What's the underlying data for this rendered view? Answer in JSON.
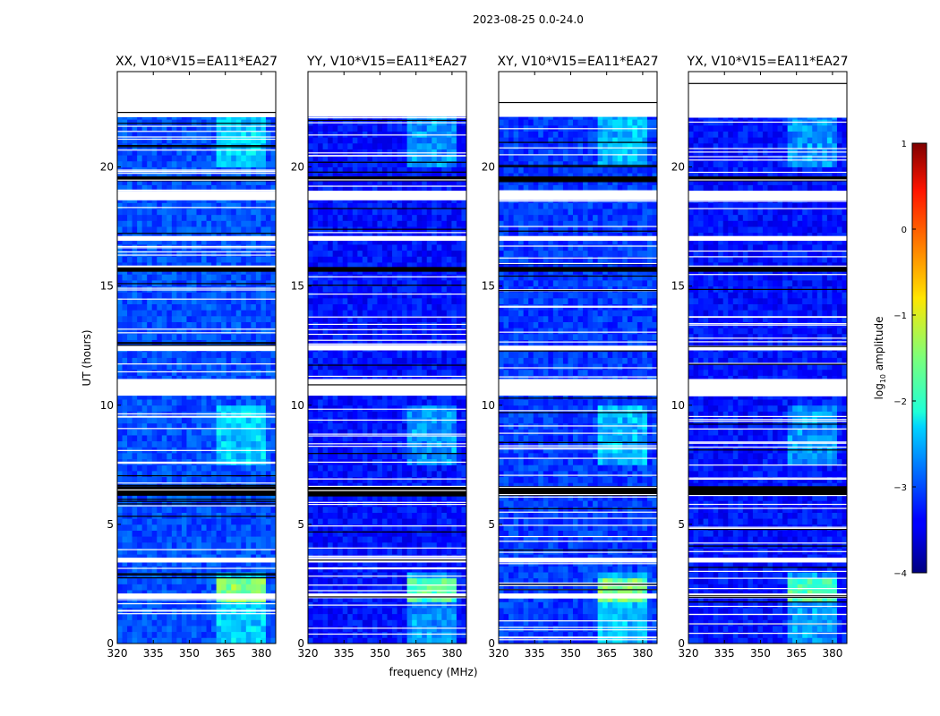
{
  "figure": {
    "suptitle": "2023-08-25 0.0-24.0",
    "xlabel": "frequency (MHz)",
    "ylabel": "UT (hours)",
    "colorbar_label": "log",
    "colorbar_label_sub": "10",
    "colorbar_label_rest": " amplitude"
  },
  "chart_data": [
    {
      "type": "heatmap",
      "title": "XX, V10*V15=EA11*EA27",
      "xlabel": "frequency (MHz)",
      "ylabel": "UT (hours)",
      "xlim": [
        320,
        386
      ],
      "ylim": [
        0,
        24
      ],
      "x_ticks": [
        320,
        335,
        350,
        365,
        380
      ],
      "y_ticks": [
        0,
        5,
        10,
        15,
        20
      ],
      "rfi_band_mhz": [
        362,
        381
      ],
      "base_level_log10": -3.0
    },
    {
      "type": "heatmap",
      "title": "YY, V10*V15=EA11*EA27",
      "xlabel": "frequency (MHz)",
      "ylabel": "",
      "xlim": [
        320,
        386
      ],
      "ylim": [
        0,
        24
      ],
      "x_ticks": [
        320,
        335,
        350,
        365,
        380
      ],
      "y_ticks": [
        0,
        5,
        10,
        15,
        20
      ],
      "rfi_band_mhz": [
        362,
        381
      ],
      "base_level_log10": -3.3
    },
    {
      "type": "heatmap",
      "title": "XY, V10*V15=EA11*EA27",
      "xlabel": "",
      "ylabel": "",
      "xlim": [
        320,
        386
      ],
      "ylim": [
        0,
        24
      ],
      "x_ticks": [
        320,
        335,
        350,
        365,
        380
      ],
      "y_ticks": [
        0,
        5,
        10,
        15,
        20
      ],
      "rfi_band_mhz": [
        362,
        381
      ],
      "base_level_log10": -3.1
    },
    {
      "type": "heatmap",
      "title": "YX, V10*V15=EA11*EA27",
      "xlabel": "",
      "ylabel": "",
      "xlim": [
        320,
        386
      ],
      "ylim": [
        0,
        24
      ],
      "x_ticks": [
        320,
        335,
        350,
        365,
        380
      ],
      "y_ticks": [
        0,
        5,
        10,
        15,
        20
      ],
      "rfi_band_mhz": [
        362,
        381
      ],
      "base_level_log10": -3.3
    }
  ],
  "colorbar": {
    "colormap": "jet",
    "range": [
      -4,
      1
    ],
    "ticks": [
      1,
      0,
      -1,
      -2,
      -3,
      -4
    ],
    "tick_labels": [
      "1",
      "0",
      "−1",
      "−2",
      "−3",
      "−4"
    ]
  },
  "flagged_rows_hours": [
    [
      22.1,
      24.0,
      "blank"
    ],
    [
      19.4,
      19.6,
      "black"
    ],
    [
      19.0,
      18.6,
      "blank"
    ],
    [
      17.1,
      16.9,
      "blank"
    ],
    [
      15.8,
      15.6,
      "black"
    ],
    [
      12.5,
      12.3,
      "blank"
    ],
    [
      11.1,
      10.4,
      "blank"
    ],
    [
      6.6,
      6.2,
      "black"
    ],
    [
      3.6,
      3.4,
      "blank"
    ],
    [
      2.1,
      1.9,
      "blank"
    ]
  ]
}
